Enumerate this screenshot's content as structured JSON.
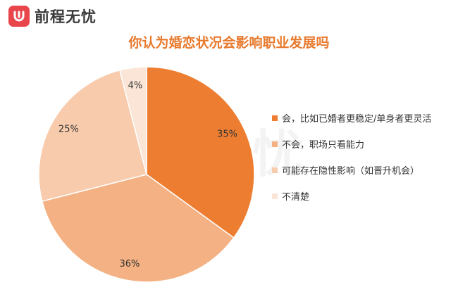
{
  "brand": {
    "name": "前程无忧",
    "watermark": "前程无忧",
    "color": "#e8464a"
  },
  "chart_data": {
    "type": "pie",
    "title": "你认为婚恋状况会影响职业发展吗",
    "legend_position": "right",
    "slices": [
      {
        "label": "会，比如已婚者更稳定/单身者更灵活",
        "value": 35,
        "display": "35%",
        "color": "#ed7d31"
      },
      {
        "label": "不会，职场只看能力",
        "value": 36,
        "display": "36%",
        "color": "#f4b183"
      },
      {
        "label": "可能存在隐性影响（如晋升机会）",
        "value": 25,
        "display": "25%",
        "color": "#f8cbad"
      },
      {
        "label": "不清楚",
        "value": 4,
        "display": "4%",
        "color": "#fbe5d6"
      }
    ]
  }
}
